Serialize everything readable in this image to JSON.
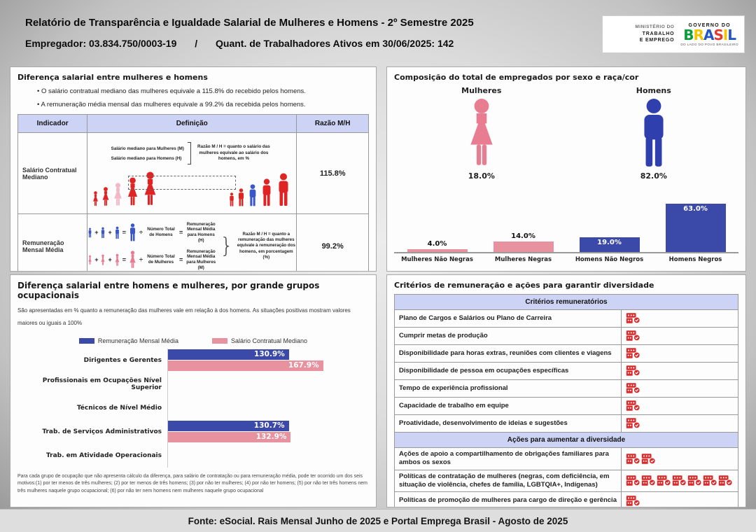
{
  "colors": {
    "blue": "#3b4aa8",
    "pink": "#e8919f",
    "red": "#d92b2b",
    "male_blue": "#2f3fad",
    "female_pink": "#e87d92",
    "table_header_bg": "#ccd3f4",
    "person_red": "#e02424",
    "person_pink": "#f2b8c6",
    "person_blue": "#3a56c8"
  },
  "header": {
    "title": "Relatório de Transparência e Igualdade Salarial de Mulheres e Homens - 2º Semestre 2025",
    "employer": "Empregador: 03.834.750/0003-19",
    "separator": "/",
    "workers": "Quant. de Trabalhadores Ativos em 30/06/2025: 142",
    "logo": {
      "ministry_line1": "MINISTÉRIO DO",
      "ministry_line2": "TRABALHO",
      "ministry_line3": "E EMPREGO",
      "governo_do": "GOVERNO DO",
      "brasil_letters": [
        "B",
        "R",
        "A",
        "S",
        "I",
        "L"
      ],
      "tagline": "DO LADO DO POVO BRASILEIRO"
    }
  },
  "wage_gap": {
    "title": "Diferença salarial entre mulheres e homens",
    "bullets": [
      "O salário contratual mediano das mulheres equivale a 115.8% do recebido pelos homens.",
      "A remuneração média mensal das mulheres equivale a 99.2% da recebida pelos homens."
    ],
    "table": {
      "col_indicador": "Indicador",
      "col_definicao": "Definição",
      "col_razao": "Razão M/H",
      "row_mediano": {
        "indicator": "Salário Contratual Mediano",
        "label_women": "Salário mediano para Mulheres (M)",
        "label_men": "Salário mediano para Homens (H)",
        "note": "Razão M / H = quanto o salário das mulheres equivale ao salário dos homens, em %",
        "ratio": "115.8%"
      },
      "row_media": {
        "indicator": "Remuneração Mensal Média",
        "men_divisor": "Número Total de Homens",
        "men_result": "Remuneração Mensal Média para Homens (H)",
        "women_divisor": "Número Total de Mulheres",
        "women_result": "Remuneração Mensal Média para Mulheres (M)",
        "note": "Razão M / H = quanto a remuneração das mulheres equivale à remuneração dos homens, em porcentagem (%)",
        "ratio": "99.2%",
        "plus": "+",
        "equals": "=",
        "divide": "÷"
      }
    }
  },
  "composition": {
    "title": "Composição do total de empregados por sexo e raça/cor",
    "women_label": "Mulheres",
    "women_value": "18.0%",
    "men_label": "Homens",
    "men_value": "82.0%"
  },
  "occupational": {
    "title": "Diferença salarial entre homens e mulheres, por grande grupos ocupacionais",
    "subtitle": "São apresentadas em % quanto a remuneração das mulheres vale em relação à dos homens. As situações positivas mostram valores maiores ou iguais a 100%",
    "legend": [
      "Remuneração Mensal Média",
      "Salário Contratual Mediano"
    ],
    "footnote": "Para cada grupo de ocupação que não apresenta cálculo da diferença, para salário de contratação ou para remuneração média, pode ter ocorrido um dos seis motivos:(1) por ter menos de três mulheres; (2) por ter menos de três homens; (3) por não ter mulheres; (4) por não ter homens; (5) por não ter três homens nem três mulheres naquele grupo ocupacional; (6) por não ter nem homens nem mulheres naquele grupo ocupacional"
  },
  "criteria": {
    "title": "Critérios de remuneração e ações para garantir diversidade",
    "section1_header": "Critérios remuneratórios",
    "section1_rows": [
      {
        "label": "Plano de Cargos e Salários ou Plano de Carreira",
        "icons": 1
      },
      {
        "label": "Cumprir metas de produção",
        "icons": 1
      },
      {
        "label": "Disponibilidade para horas extras, reuniões com clientes e viagens",
        "icons": 1
      },
      {
        "label": "Disponibilidade de pessoa em ocupações específicas",
        "icons": 1
      },
      {
        "label": "Tempo de experiência profissional",
        "icons": 1
      },
      {
        "label": "Capacidade de trabalho em equipe",
        "icons": 1
      },
      {
        "label": "Proatividade, desenvolvimento de ideias e sugestões",
        "icons": 1
      }
    ],
    "section2_header": "Ações para aumentar a diversidade",
    "section2_rows": [
      {
        "label": "Ações de apoio a compartilhamento de obrigações familiares para ambos os sexos",
        "icons": 2
      },
      {
        "label": "Políticas de contratação de mulheres (negras, com deficiência, em situação de violência, chefes de família, LGBTQIA+, Indígenas)",
        "icons": 7
      },
      {
        "label": "Políticas de promoção de mulheres para cargo de direção e gerência",
        "icons": 1
      }
    ]
  },
  "footer": {
    "source": "Fonte: eSocial. Rais Mensal Junho de 2025 e Portal Emprega Brasil - Agosto de 2025"
  },
  "chart_data": [
    {
      "type": "bar",
      "title": "Composição do total de empregados por sexo e raça/cor",
      "categories": [
        "Mulheres Não Negras",
        "Mulheres Negras",
        "Homens Não Negros",
        "Homens Negros"
      ],
      "values": [
        4.0,
        14.0,
        19.0,
        63.0
      ],
      "value_labels": [
        "4.0%",
        "14.0%",
        "19.0%",
        "63.0%"
      ],
      "bar_colors": [
        "#e8919f",
        "#e8919f",
        "#3b4aa8",
        "#3b4aa8"
      ],
      "unit": "%",
      "ylim": [
        0,
        70
      ],
      "grid": false,
      "extra_pictograms": {
        "Mulheres": 18.0,
        "Homens": 82.0
      }
    },
    {
      "type": "bar",
      "orientation": "horizontal",
      "title": "Diferença salarial entre homens e mulheres, por grande grupos ocupacionais",
      "categories": [
        "Dirigentes e Gerentes",
        "Profissionais em Ocupações Nível Superior",
        "Técnicos de Nível Médio",
        "Trab. de Serviços Administrativos",
        "Trab. em Atividade Operacionais"
      ],
      "series": [
        {
          "name": "Remuneração Mensal Média",
          "color": "#3b4aa8",
          "values": [
            130.9,
            null,
            null,
            130.7,
            null
          ],
          "value_labels": [
            "130.9%",
            null,
            null,
            "130.7%",
            null
          ]
        },
        {
          "name": "Salário Contratual Mediano",
          "color": "#e8919f",
          "values": [
            167.9,
            null,
            null,
            132.9,
            null
          ],
          "value_labels": [
            "167.9%",
            null,
            null,
            "132.9%",
            null
          ]
        }
      ],
      "unit": "%",
      "xlim": [
        0,
        230
      ],
      "legend_position": "top"
    }
  ]
}
